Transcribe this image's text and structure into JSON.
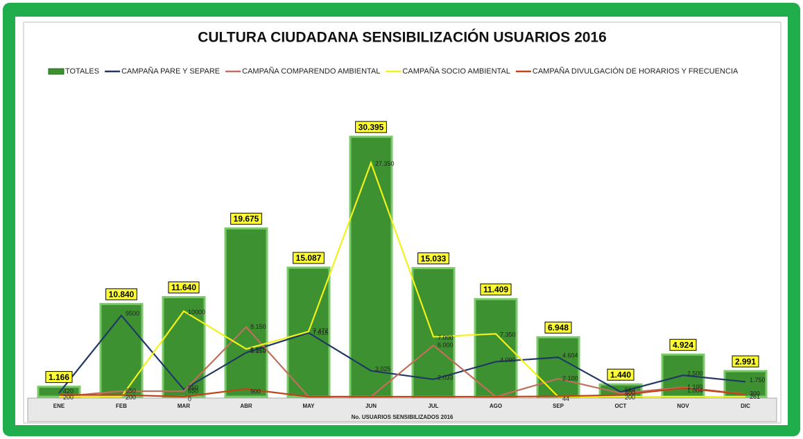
{
  "chart_data": {
    "type": "bar-line",
    "title": "CULTURA CIUDADANA SENSIBILIZACIÓN USUARIOS 2016",
    "x_label": "No. USUARIOS SENSIBILIZADOS 2016",
    "categories": [
      "ENE",
      "FEB",
      "MAR",
      "ABR",
      "MAY",
      "JUN",
      "JUL",
      "AGO",
      "SEP",
      "OCT",
      "NOV",
      "DIC"
    ],
    "ylim": [
      0,
      33000
    ],
    "series": [
      {
        "name": "TOTALES",
        "kind": "bar",
        "color": "#3d9131",
        "values": [
          1166,
          10840,
          11640,
          19675,
          15087,
          30395,
          15033,
          11409,
          6948,
          1440,
          4924,
          2991
        ],
        "value_labels": [
          "1.166",
          "10.840",
          "11.640",
          "19.675",
          "15.087",
          "30.395",
          "15.033",
          "11.409",
          "6.948",
          "1.440",
          "4.924",
          "2.991"
        ]
      },
      {
        "name": "CAMPAÑA PARE Y SEPARE",
        "kind": "line",
        "color": "#1f3864",
        "values": [
          420,
          9500,
          850,
          5150,
          7472,
          3025,
          2033,
          4090,
          4604,
          564,
          2500,
          1750
        ],
        "value_labels": [
          "420",
          "9500",
          "850",
          "5.150",
          "7.472",
          "3.025",
          "2.033",
          "4.090",
          "4.604",
          "564",
          "2.500",
          "1.750"
        ]
      },
      {
        "name": "CAMPAÑA COMPARENDO AMBIENTAL",
        "kind": "line",
        "color": "#c0705a",
        "values": [
          0,
          650,
          650,
          8150,
          0,
          0,
          6000,
          0,
          2100,
          400,
          1100,
          300
        ],
        "value_labels": [
          null,
          "650",
          "650",
          "8.150",
          null,
          null,
          "6.000",
          null,
          "2.100",
          "400",
          "1.100",
          "300"
        ]
      },
      {
        "name": "CAMPAÑA SOCIO AMBIENTAL",
        "kind": "line",
        "color": "#f2f21a",
        "values": [
          0,
          0,
          10000,
          5575,
          7615,
          27350,
          7000,
          7350,
          0,
          0,
          0,
          0
        ],
        "value_labels": [
          null,
          null,
          "10000",
          "5.575",
          "7.615",
          "27.350",
          "7.000",
          "7.350",
          null,
          null,
          null,
          null
        ]
      },
      {
        "name": "CAMPAÑA DIVULGACIÓN DE HORARIOS Y FRECUENCIA",
        "kind": "line",
        "color": "#c0441a",
        "values": [
          200,
          200,
          0,
          900,
          0,
          0,
          0,
          0,
          44,
          200,
          1004,
          261
        ],
        "value_labels": [
          "200",
          "200",
          "0",
          "900",
          null,
          null,
          null,
          null,
          "44",
          "200",
          "1.004",
          "261"
        ]
      }
    ]
  }
}
